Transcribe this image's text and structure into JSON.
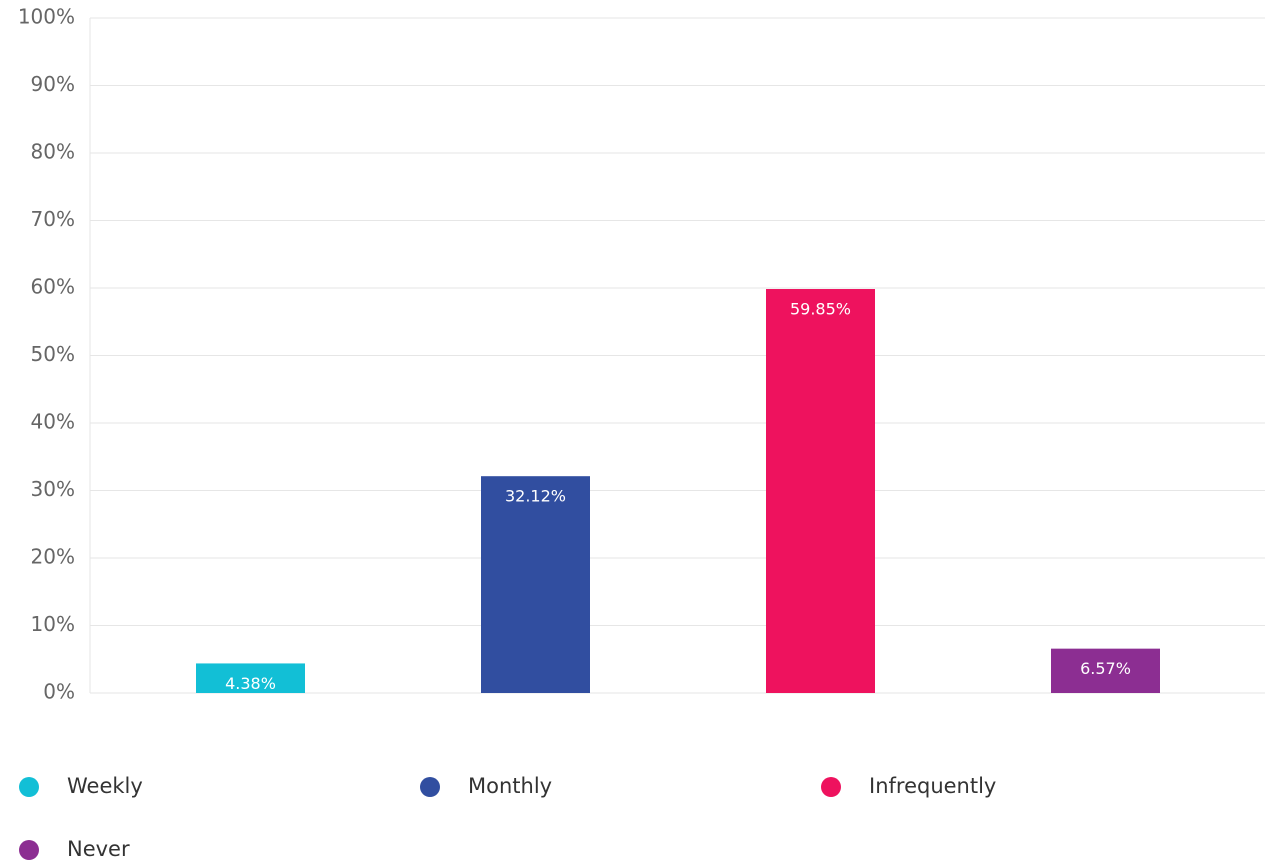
{
  "chart_data": {
    "type": "bar",
    "categories": [
      "Weekly",
      "Monthly",
      "Infrequently",
      "Never"
    ],
    "values": [
      4.38,
      32.12,
      59.85,
      6.57
    ],
    "value_labels": [
      "4.38%",
      "32.12%",
      "59.85%",
      "6.57%"
    ],
    "colors": [
      "#12bfd6",
      "#314ea0",
      "#ee125e",
      "#8c2e92"
    ],
    "ylim": [
      0,
      100
    ],
    "yticks": [
      {
        "value": 0,
        "label": "0%"
      },
      {
        "value": 10,
        "label": "10%"
      },
      {
        "value": 20,
        "label": "20%"
      },
      {
        "value": 30,
        "label": "30%"
      },
      {
        "value": 40,
        "label": "40%"
      },
      {
        "value": 50,
        "label": "50%"
      },
      {
        "value": 60,
        "label": "60%"
      },
      {
        "value": 70,
        "label": "70%"
      },
      {
        "value": 80,
        "label": "80%"
      },
      {
        "value": 90,
        "label": "90%"
      },
      {
        "value": 100,
        "label": "100%"
      }
    ],
    "grid": true
  }
}
